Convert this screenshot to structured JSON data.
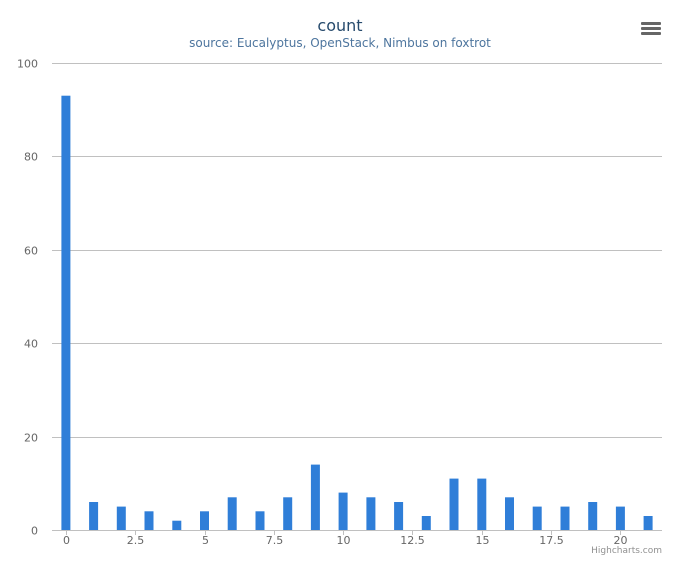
{
  "chart_data": {
    "type": "bar",
    "title": "count",
    "subtitle": "source: Eucalyptus, OpenStack, Nimbus on foxtrot",
    "x": [
      0,
      1,
      2,
      3,
      4,
      5,
      6,
      7,
      8,
      9,
      10,
      11,
      12,
      13,
      14,
      15,
      16,
      17,
      18,
      19,
      20,
      21
    ],
    "values": [
      93,
      6,
      5,
      4,
      2,
      4,
      7,
      4,
      7,
      14,
      8,
      7,
      6,
      3,
      11,
      11,
      7,
      5,
      5,
      6,
      5,
      3
    ],
    "xticks": [
      0,
      2.5,
      5,
      7.5,
      10,
      12.5,
      15,
      17.5,
      20
    ],
    "xtick_labels": [
      "0",
      "2.5",
      "5",
      "7.5",
      "10",
      "12.5",
      "15",
      "17.5",
      "20"
    ],
    "yticks": [
      0,
      20,
      40,
      60,
      80,
      100
    ],
    "ytick_labels": [
      "0",
      "20",
      "40",
      "60",
      "80",
      "100"
    ],
    "ylim": [
      0,
      100
    ],
    "xlim": [
      -0.5,
      21.5
    ],
    "grid": true,
    "legend": "none",
    "bar_color": "#2f7ed8",
    "grid_color": "#c0c0c0"
  },
  "credits": "Highcharts.com",
  "menu": {
    "icon": "menu-icon"
  }
}
